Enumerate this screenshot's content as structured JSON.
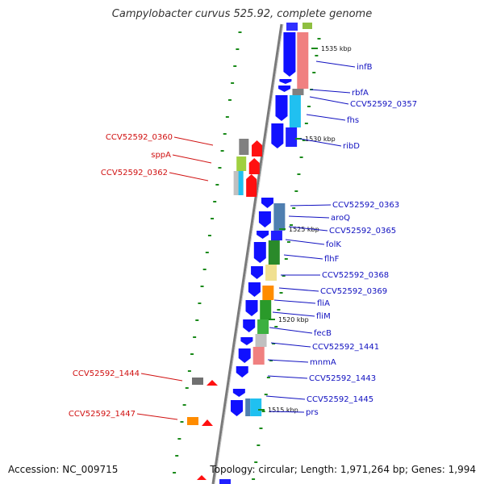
{
  "title": "Campylobacter curvus 525.92, complete genome",
  "footer": {
    "accession": "Accession: NC_009715",
    "topology": "Topology: circular; Length: 1,971,264 bp; Genes: 1,994"
  },
  "colors": {
    "backbone": "#8c8c8c",
    "label_blue": "#1010c0",
    "label_red": "#d01010",
    "tick_green": "#1a8a1a"
  },
  "kbp_marks": [
    {
      "label": "1535 kbp"
    },
    {
      "label": "1530 kbp"
    },
    {
      "label": "1525 kbp"
    },
    {
      "label": "1520 kbp"
    },
    {
      "label": "1515 kbp"
    }
  ],
  "genes_right": [
    {
      "name": "infB"
    },
    {
      "name": "rbfA"
    },
    {
      "name": "CCV52592_0357"
    },
    {
      "name": "fhs"
    },
    {
      "name": "ribD"
    },
    {
      "name": "CCV52592_0363"
    },
    {
      "name": "aroQ"
    },
    {
      "name": "CCV52592_0365"
    },
    {
      "name": "folK"
    },
    {
      "name": "flhF"
    },
    {
      "name": "CCV52592_0368"
    },
    {
      "name": "CCV52592_0369"
    },
    {
      "name": "fliA"
    },
    {
      "name": "fliM"
    },
    {
      "name": "fecB"
    },
    {
      "name": "CCV52592_1441"
    },
    {
      "name": "mnmA"
    },
    {
      "name": "CCV52592_1443"
    },
    {
      "name": "CCV52592_1445"
    },
    {
      "name": "prs"
    }
  ],
  "genes_left": [
    {
      "name": "CCV52592_0360"
    },
    {
      "name": "sppA"
    },
    {
      "name": "CCV52592_0362"
    },
    {
      "name": "CCV52592_1444"
    },
    {
      "name": "CCV52592_1447"
    }
  ]
}
